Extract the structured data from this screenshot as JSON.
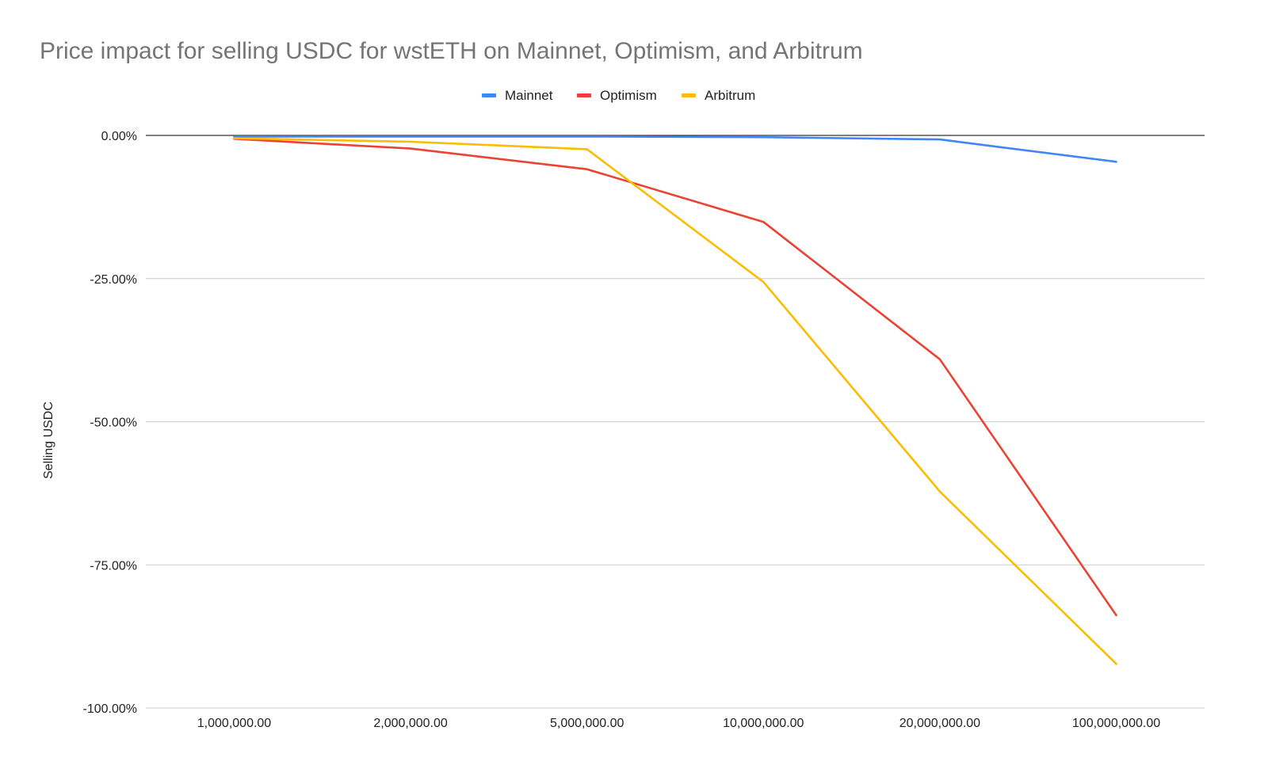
{
  "chart_data": {
    "type": "line",
    "title": "Price impact for selling USDC for wstETH on Mainnet, Optimism, and Arbitrum",
    "xlabel": "",
    "ylabel": "Selling USDC",
    "categories": [
      "1,000,000.00",
      "2,000,000.00",
      "5,000,000.00",
      "10,000,000.00",
      "20,000,000.00",
      "100,000,000.00"
    ],
    "y_ticks": [
      0,
      -25,
      -50,
      -75,
      -100
    ],
    "y_tick_labels": [
      "0.00%",
      "-25.00%",
      "-50.00%",
      "-75.00%",
      "-100.00%"
    ],
    "ylim": [
      -100,
      0
    ],
    "y_unit": "%",
    "grid": true,
    "legend_position": "top",
    "series": [
      {
        "name": "Mainnet",
        "color": "#4285F4",
        "values": [
          -0.2,
          -0.2,
          -0.2,
          -0.3,
          -0.7,
          -4.6
        ]
      },
      {
        "name": "Optimism",
        "color": "#EA4335",
        "values": [
          -0.6,
          -2.3,
          -5.9,
          -15.1,
          -39.1,
          -83.8
        ]
      },
      {
        "name": "Arbitrum",
        "color": "#FBBC04",
        "values": [
          -0.5,
          -1.1,
          -2.4,
          -25.6,
          -62.2,
          -92.3
        ]
      }
    ]
  }
}
